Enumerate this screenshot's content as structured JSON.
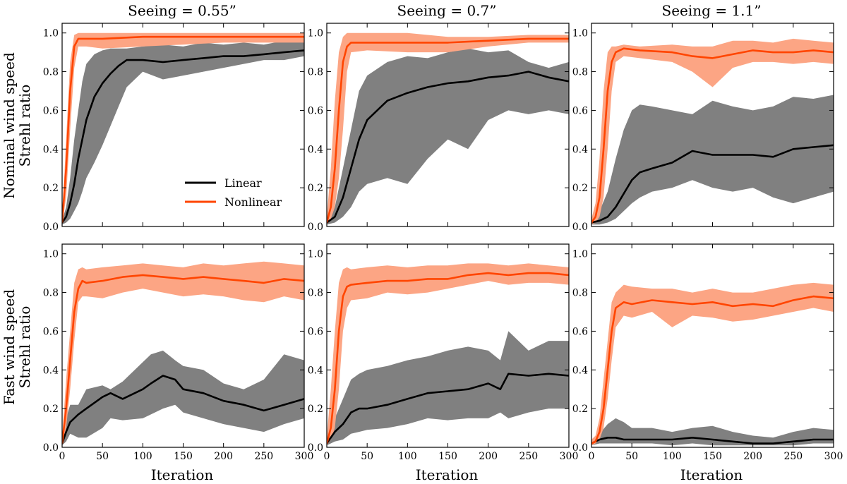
{
  "chart_data": {
    "type": "line",
    "layout": "2x3 grid",
    "column_titles": [
      "Seeing = 0.55”",
      "Seeing = 0.7”",
      "Seeing = 1.1”"
    ],
    "row_ylabels": [
      [
        "Nominal wind speed",
        "Strehl ratio"
      ],
      [
        "Fast wind speed",
        "Strehl ratio"
      ]
    ],
    "xlabel": "Iteration",
    "xlim": [
      0,
      300
    ],
    "ylim": [
      0,
      1.05
    ],
    "xticks": [
      0,
      50,
      100,
      150,
      200,
      250,
      300
    ],
    "yticks": [
      "0.0",
      "0.2",
      "0.4",
      "0.6",
      "0.8",
      "1.0"
    ],
    "legend": {
      "location": "inside top-left panel, lower right",
      "entries": [
        {
          "name": "Linear",
          "color": "#000000"
        },
        {
          "name": "Nonlinear",
          "color": "#ff4500"
        }
      ]
    },
    "colors": {
      "linear_line": "#000000",
      "linear_band": "#808080",
      "nonlinear_line": "#ff4500",
      "nonlinear_band": "#fca584"
    },
    "panels": [
      {
        "row": 0,
        "col": 0,
        "linear": {
          "x": [
            0,
            5,
            10,
            15,
            20,
            25,
            30,
            40,
            50,
            60,
            70,
            80,
            100,
            125,
            150,
            175,
            200,
            225,
            250,
            275,
            300
          ],
          "mean": [
            0.02,
            0.05,
            0.12,
            0.22,
            0.35,
            0.45,
            0.55,
            0.67,
            0.74,
            0.79,
            0.83,
            0.86,
            0.86,
            0.85,
            0.86,
            0.87,
            0.88,
            0.88,
            0.89,
            0.9,
            0.91
          ],
          "lower": [
            0.01,
            0.02,
            0.04,
            0.08,
            0.12,
            0.18,
            0.25,
            0.33,
            0.42,
            0.52,
            0.62,
            0.72,
            0.8,
            0.76,
            0.78,
            0.8,
            0.82,
            0.84,
            0.86,
            0.86,
            0.88
          ],
          "upper": [
            0.03,
            0.1,
            0.25,
            0.45,
            0.6,
            0.75,
            0.84,
            0.89,
            0.91,
            0.92,
            0.92,
            0.92,
            0.93,
            0.94,
            0.93,
            0.95,
            0.94,
            0.95,
            0.94,
            0.96,
            0.97
          ]
        },
        "nonlinear": {
          "x": [
            0,
            5,
            10,
            15,
            20,
            30,
            50,
            100,
            150,
            200,
            250,
            300
          ],
          "mean": [
            0.02,
            0.3,
            0.7,
            0.93,
            0.97,
            0.97,
            0.97,
            0.98,
            0.98,
            0.98,
            0.98,
            0.98
          ],
          "lower": [
            0.01,
            0.15,
            0.5,
            0.82,
            0.93,
            0.93,
            0.92,
            0.93,
            0.94,
            0.95,
            0.95,
            0.95
          ],
          "upper": [
            0.04,
            0.45,
            0.85,
            0.99,
            1.0,
            1.0,
            1.0,
            1.0,
            1.0,
            1.0,
            1.0,
            1.0
          ]
        }
      },
      {
        "row": 0,
        "col": 1,
        "linear": {
          "x": [
            0,
            10,
            20,
            30,
            40,
            50,
            75,
            100,
            125,
            150,
            175,
            200,
            225,
            250,
            275,
            300
          ],
          "mean": [
            0.02,
            0.05,
            0.15,
            0.3,
            0.45,
            0.55,
            0.65,
            0.69,
            0.72,
            0.74,
            0.75,
            0.77,
            0.78,
            0.8,
            0.77,
            0.75
          ],
          "lower": [
            0.01,
            0.02,
            0.05,
            0.1,
            0.18,
            0.22,
            0.25,
            0.22,
            0.35,
            0.45,
            0.4,
            0.55,
            0.6,
            0.58,
            0.6,
            0.58
          ],
          "upper": [
            0.04,
            0.1,
            0.3,
            0.5,
            0.7,
            0.78,
            0.85,
            0.88,
            0.87,
            0.9,
            0.92,
            0.9,
            0.91,
            0.85,
            0.82,
            0.85
          ]
        },
        "nonlinear": {
          "x": [
            0,
            5,
            10,
            15,
            20,
            25,
            30,
            50,
            100,
            150,
            200,
            250,
            300
          ],
          "mean": [
            0.02,
            0.1,
            0.3,
            0.6,
            0.85,
            0.93,
            0.95,
            0.95,
            0.95,
            0.95,
            0.96,
            0.97,
            0.97
          ],
          "lower": [
            0.01,
            0.04,
            0.1,
            0.25,
            0.5,
            0.8,
            0.9,
            0.91,
            0.9,
            0.9,
            0.93,
            0.95,
            0.95
          ],
          "upper": [
            0.05,
            0.3,
            0.65,
            0.9,
            0.98,
            1.0,
            1.0,
            1.0,
            1.0,
            0.98,
            0.98,
            0.99,
            0.99
          ]
        }
      },
      {
        "row": 0,
        "col": 2,
        "linear": {
          "x": [
            0,
            10,
            20,
            30,
            40,
            50,
            60,
            75,
            100,
            125,
            150,
            175,
            200,
            225,
            250,
            275,
            300
          ],
          "mean": [
            0.02,
            0.03,
            0.05,
            0.1,
            0.17,
            0.24,
            0.28,
            0.3,
            0.33,
            0.39,
            0.37,
            0.37,
            0.37,
            0.36,
            0.4,
            0.41,
            0.42
          ],
          "lower": [
            0.01,
            0.01,
            0.02,
            0.04,
            0.08,
            0.12,
            0.15,
            0.18,
            0.2,
            0.24,
            0.2,
            0.18,
            0.2,
            0.15,
            0.12,
            0.15,
            0.18
          ],
          "upper": [
            0.03,
            0.08,
            0.18,
            0.35,
            0.5,
            0.6,
            0.63,
            0.62,
            0.6,
            0.58,
            0.65,
            0.62,
            0.6,
            0.62,
            0.67,
            0.66,
            0.68
          ]
        },
        "nonlinear": {
          "x": [
            0,
            5,
            10,
            15,
            20,
            25,
            30,
            40,
            60,
            100,
            125,
            150,
            175,
            200,
            225,
            250,
            275,
            300
          ],
          "mean": [
            0.02,
            0.05,
            0.15,
            0.4,
            0.7,
            0.85,
            0.9,
            0.92,
            0.91,
            0.9,
            0.88,
            0.87,
            0.89,
            0.91,
            0.9,
            0.9,
            0.91,
            0.9
          ],
          "lower": [
            0.01,
            0.02,
            0.05,
            0.15,
            0.4,
            0.7,
            0.85,
            0.88,
            0.87,
            0.85,
            0.8,
            0.72,
            0.82,
            0.85,
            0.85,
            0.84,
            0.85,
            0.84
          ],
          "upper": [
            0.04,
            0.12,
            0.35,
            0.7,
            0.9,
            0.93,
            0.93,
            0.94,
            0.93,
            0.94,
            0.93,
            0.93,
            0.96,
            0.96,
            0.95,
            0.97,
            0.96,
            0.95
          ]
        }
      },
      {
        "row": 1,
        "col": 0,
        "linear": {
          "x": [
            0,
            5,
            10,
            20,
            30,
            50,
            60,
            75,
            100,
            110,
            125,
            140,
            150,
            175,
            200,
            225,
            250,
            275,
            300
          ],
          "mean": [
            0.02,
            0.08,
            0.13,
            0.17,
            0.2,
            0.26,
            0.28,
            0.25,
            0.3,
            0.33,
            0.37,
            0.35,
            0.3,
            0.28,
            0.24,
            0.22,
            0.19,
            0.22,
            0.25
          ],
          "lower": [
            0.01,
            0.03,
            0.07,
            0.05,
            0.05,
            0.1,
            0.15,
            0.14,
            0.15,
            0.17,
            0.2,
            0.22,
            0.18,
            0.15,
            0.12,
            0.1,
            0.08,
            0.12,
            0.15
          ],
          "upper": [
            0.04,
            0.15,
            0.22,
            0.22,
            0.3,
            0.32,
            0.3,
            0.34,
            0.44,
            0.48,
            0.5,
            0.45,
            0.42,
            0.4,
            0.33,
            0.3,
            0.35,
            0.48,
            0.45
          ]
        },
        "nonlinear": {
          "x": [
            0,
            5,
            10,
            15,
            20,
            25,
            30,
            50,
            75,
            100,
            125,
            150,
            175,
            200,
            225,
            250,
            275,
            300
          ],
          "mean": [
            0.02,
            0.2,
            0.45,
            0.7,
            0.82,
            0.86,
            0.85,
            0.86,
            0.88,
            0.89,
            0.88,
            0.87,
            0.88,
            0.87,
            0.86,
            0.85,
            0.87,
            0.86
          ],
          "lower": [
            0.01,
            0.1,
            0.3,
            0.55,
            0.75,
            0.78,
            0.78,
            0.77,
            0.8,
            0.82,
            0.8,
            0.78,
            0.79,
            0.78,
            0.76,
            0.75,
            0.78,
            0.76
          ],
          "upper": [
            0.05,
            0.35,
            0.6,
            0.85,
            0.92,
            0.93,
            0.92,
            0.93,
            0.94,
            0.95,
            0.94,
            0.93,
            0.95,
            0.94,
            0.95,
            0.96,
            0.95,
            0.94
          ]
        }
      },
      {
        "row": 1,
        "col": 1,
        "linear": {
          "x": [
            0,
            5,
            10,
            20,
            30,
            40,
            50,
            75,
            100,
            125,
            150,
            175,
            200,
            215,
            225,
            250,
            275,
            300
          ],
          "mean": [
            0.02,
            0.05,
            0.08,
            0.12,
            0.18,
            0.2,
            0.2,
            0.22,
            0.25,
            0.28,
            0.29,
            0.3,
            0.33,
            0.3,
            0.38,
            0.37,
            0.38,
            0.37
          ],
          "lower": [
            0.01,
            0.02,
            0.03,
            0.04,
            0.07,
            0.08,
            0.09,
            0.1,
            0.12,
            0.15,
            0.14,
            0.15,
            0.15,
            0.18,
            0.15,
            0.18,
            0.2,
            0.2
          ],
          "upper": [
            0.04,
            0.1,
            0.15,
            0.25,
            0.35,
            0.38,
            0.4,
            0.42,
            0.45,
            0.47,
            0.5,
            0.52,
            0.5,
            0.45,
            0.6,
            0.5,
            0.55,
            0.55
          ]
        },
        "nonlinear": {
          "x": [
            0,
            5,
            10,
            15,
            20,
            25,
            30,
            50,
            75,
            100,
            125,
            150,
            175,
            200,
            225,
            250,
            275,
            300
          ],
          "mean": [
            0.02,
            0.1,
            0.3,
            0.6,
            0.78,
            0.83,
            0.84,
            0.85,
            0.86,
            0.86,
            0.87,
            0.87,
            0.89,
            0.9,
            0.89,
            0.9,
            0.9,
            0.89
          ],
          "lower": [
            0.01,
            0.04,
            0.1,
            0.3,
            0.6,
            0.72,
            0.76,
            0.77,
            0.8,
            0.79,
            0.8,
            0.82,
            0.84,
            0.86,
            0.84,
            0.85,
            0.85,
            0.84
          ],
          "upper": [
            0.05,
            0.3,
            0.6,
            0.85,
            0.92,
            0.93,
            0.92,
            0.93,
            0.94,
            0.93,
            0.94,
            0.94,
            0.95,
            0.95,
            0.94,
            0.95,
            0.94,
            0.93
          ]
        }
      },
      {
        "row": 1,
        "col": 2,
        "linear": {
          "x": [
            0,
            10,
            20,
            30,
            40,
            50,
            75,
            100,
            125,
            150,
            175,
            200,
            225,
            250,
            275,
            300
          ],
          "mean": [
            0.02,
            0.04,
            0.05,
            0.05,
            0.04,
            0.04,
            0.04,
            0.04,
            0.05,
            0.04,
            0.03,
            0.02,
            0.02,
            0.03,
            0.04,
            0.04
          ],
          "lower": [
            0.01,
            0.02,
            0.02,
            0.02,
            0.02,
            0.02,
            0.02,
            0.01,
            0.02,
            0.01,
            0.01,
            0.01,
            0.01,
            0.01,
            0.02,
            0.02
          ],
          "upper": [
            0.03,
            0.07,
            0.12,
            0.15,
            0.13,
            0.1,
            0.1,
            0.08,
            0.1,
            0.11,
            0.08,
            0.06,
            0.05,
            0.08,
            0.1,
            0.09
          ]
        },
        "nonlinear": {
          "x": [
            0,
            5,
            10,
            15,
            20,
            25,
            30,
            40,
            50,
            75,
            100,
            125,
            150,
            175,
            200,
            225,
            250,
            275,
            300
          ],
          "mean": [
            0.02,
            0.03,
            0.08,
            0.2,
            0.4,
            0.6,
            0.72,
            0.75,
            0.74,
            0.76,
            0.75,
            0.74,
            0.75,
            0.73,
            0.74,
            0.73,
            0.76,
            0.78,
            0.77
          ],
          "lower": [
            0.01,
            0.02,
            0.04,
            0.1,
            0.25,
            0.45,
            0.62,
            0.68,
            0.67,
            0.7,
            0.62,
            0.68,
            0.67,
            0.65,
            0.66,
            0.68,
            0.7,
            0.72,
            0.7
          ],
          "upper": [
            0.04,
            0.06,
            0.15,
            0.35,
            0.55,
            0.75,
            0.8,
            0.84,
            0.83,
            0.82,
            0.82,
            0.8,
            0.82,
            0.8,
            0.8,
            0.82,
            0.84,
            0.85,
            0.84
          ]
        }
      }
    ]
  }
}
